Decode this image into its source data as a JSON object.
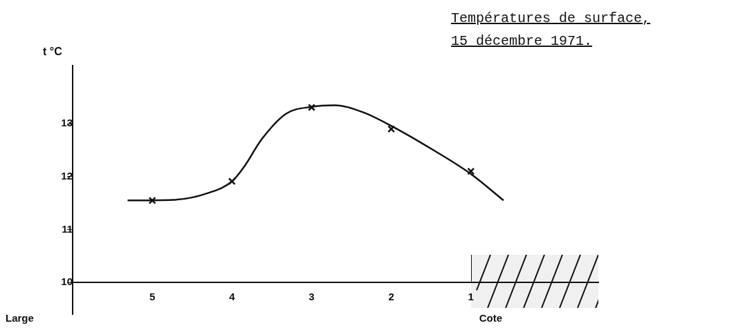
{
  "chart_data": {
    "type": "line",
    "title": "Températures de surface, 15 décembre 1971.",
    "ylabel": "t °C",
    "annotations": [
      "Large"
    ],
    "xlim": [
      6,
      -0.6
    ],
    "xticks": [
      5,
      4,
      3,
      2,
      1
    ],
    "ylim": [
      9.4,
      14.1
    ],
    "yticks": [
      10,
      11,
      12,
      13
    ],
    "grid": false,
    "legend": false,
    "bands": [
      {
        "axis": "x",
        "from": 1,
        "to": -0.6,
        "label": "Cote"
      }
    ],
    "series": [
      {
        "type": "scatter",
        "color": "#111111",
        "marker": "cross",
        "x": [
          5,
          4,
          3,
          2,
          1
        ],
        "values": [
          11.55,
          11.91,
          13.31,
          12.9,
          12.1
        ]
      },
      {
        "type": "line",
        "color": "#111111",
        "marker": "none",
        "line_style": "solid",
        "x": [
          5.31,
          4.74,
          4.3,
          4.0,
          3.85,
          3.63,
          3.32,
          3.0,
          2.71,
          2.36,
          2.0,
          1.48,
          1.0,
          0.59
        ],
        "values": [
          11.55,
          11.56,
          11.69,
          11.91,
          12.18,
          12.7,
          13.19,
          13.32,
          13.35,
          13.22,
          12.96,
          12.51,
          12.05,
          11.55
        ]
      }
    ]
  }
}
